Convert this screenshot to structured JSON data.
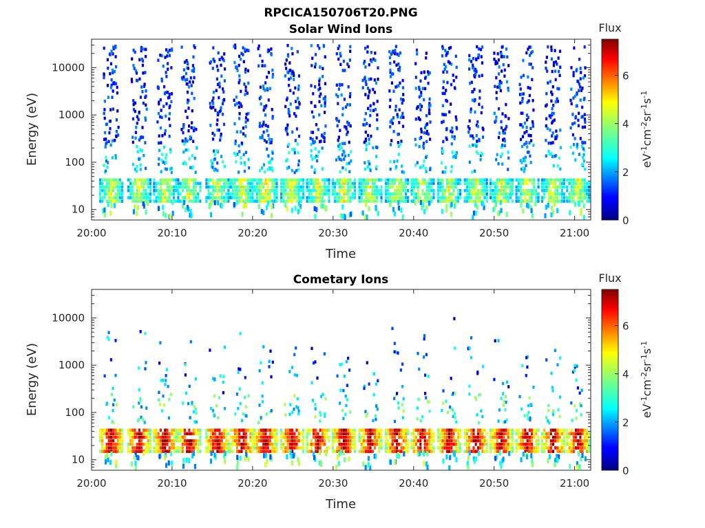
{
  "figure": {
    "title": "RPCICA150706T20.PNG"
  },
  "colorbar": {
    "title": "Flux",
    "units_label": "eV-1cm-2sr-1s-1",
    "range": [
      0,
      7.5
    ],
    "ticks": [
      "0",
      "2",
      "4",
      "6"
    ],
    "colormap": "jet"
  },
  "chart_data": [
    {
      "type": "heatmap",
      "title": "Solar Wind Ions",
      "xlabel": "Time",
      "ylabel": "Energy (eV)",
      "yscale": "log",
      "ylim": [
        6,
        40000
      ],
      "xlim": [
        "20:00",
        "21:02"
      ],
      "xticks": [
        "20:00",
        "20:10",
        "20:20",
        "20:30",
        "20:40",
        "20:50",
        "21:00"
      ],
      "yticks": [
        "10",
        "100",
        "1000",
        "10000"
      ],
      "scan_times_min": [
        2.3,
        5.8,
        9.0,
        12.0,
        15.5,
        18.5,
        21.5,
        24.8,
        28.0,
        31.2,
        34.5,
        37.8,
        41.0,
        44.3,
        47.6,
        50.8,
        54.0,
        57.2,
        60.3
      ],
      "low_energy_band": {
        "energy_range_eV": [
          15,
          45
        ],
        "typical_flux": 4.2
      },
      "high_energy_sparse": {
        "energy_range_eV": [
          60,
          30000
        ],
        "typical_flux": 1.2
      }
    },
    {
      "type": "heatmap",
      "title": "Cometary Ions",
      "xlabel": "Time",
      "ylabel": "Energy (eV)",
      "yscale": "log",
      "ylim": [
        6,
        40000
      ],
      "xlim": [
        "20:00",
        "21:02"
      ],
      "xticks": [
        "20:00",
        "20:10",
        "20:20",
        "20:30",
        "20:40",
        "20:50",
        "21:00"
      ],
      "yticks": [
        "10",
        "100",
        "1000",
        "10000"
      ],
      "scan_times_min": [
        2.3,
        5.8,
        9.0,
        12.0,
        15.5,
        18.5,
        21.5,
        24.8,
        28.0,
        31.2,
        34.5,
        37.8,
        41.0,
        44.3,
        47.6,
        50.8,
        54.0,
        57.2,
        60.3
      ],
      "low_energy_band": {
        "energy_range_eV": [
          15,
          45
        ],
        "typical_flux": 6.8
      },
      "high_energy_sparse": {
        "energy_range_eV": [
          60,
          10000
        ],
        "typical_flux": 1.8
      }
    }
  ]
}
